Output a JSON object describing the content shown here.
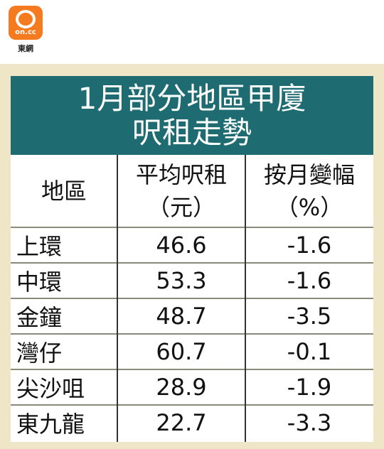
{
  "logo": {
    "text": "on.cc",
    "caption": "東網"
  },
  "header": {
    "title_lines": [
      "1月部分地區甲廈",
      "呎租走勢"
    ]
  },
  "table": {
    "columns": [
      [
        "地區"
      ],
      [
        "平均呎租",
        "（元）"
      ],
      [
        "按月變幅",
        "（%）"
      ]
    ],
    "rows": [
      [
        "上環",
        "46.6",
        "-1.6"
      ],
      [
        "中環",
        "53.3",
        "-1.6"
      ],
      [
        "金鐘",
        "48.7",
        "-3.5"
      ],
      [
        "灣仔",
        "60.7",
        "-0.1"
      ],
      [
        "尖沙咀",
        "28.9",
        "-1.9"
      ],
      [
        "東九龍",
        "22.7",
        "-3.3"
      ]
    ]
  }
}
